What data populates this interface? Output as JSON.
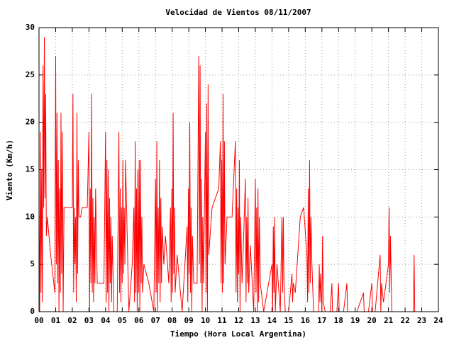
{
  "chart_data": {
    "type": "line",
    "title": "Velocidad de Vientos 08/11/2007",
    "x_label": "Tiempo (Hora Local Argentina)",
    "y_label": "Viento (Km/h)",
    "xlim": [
      0,
      24
    ],
    "ylim": [
      0,
      30
    ],
    "xticks": [
      {
        "value": 0,
        "label": "00"
      },
      {
        "value": 1,
        "label": "01"
      },
      {
        "value": 2,
        "label": "02"
      },
      {
        "value": 3,
        "label": "03"
      },
      {
        "value": 4,
        "label": "04"
      },
      {
        "value": 5,
        "label": "05"
      },
      {
        "value": 6,
        "label": "06"
      },
      {
        "value": 7,
        "label": "07"
      },
      {
        "value": 8,
        "label": "08"
      },
      {
        "value": 9,
        "label": "09"
      },
      10,
      11,
      12,
      13,
      14,
      15,
      16,
      17,
      18,
      19,
      20,
      21,
      22,
      23,
      24
    ],
    "yticks": [
      0,
      5,
      10,
      15,
      20,
      25,
      30
    ],
    "grid": true,
    "series": [
      {
        "color": "#ff0000",
        "x": [
          0,
          0.04,
          0.08,
          0.12,
          0.16,
          0.2,
          0.24,
          0.28,
          0.32,
          0.36,
          0.4,
          0.44,
          0.5,
          0.7,
          0.95,
          1.0,
          1.04,
          1.08,
          1.12,
          1.16,
          1.2,
          1.24,
          1.28,
          1.32,
          1.36,
          1.4,
          1.45,
          1.5,
          1.9,
          2.0,
          2.04,
          2.08,
          2.12,
          2.16,
          2.2,
          2.24,
          2.28,
          2.32,
          2.36,
          2.4,
          2.5,
          2.6,
          2.7,
          2.8,
          2.9,
          3.0,
          3.04,
          3.08,
          3.12,
          3.16,
          3.2,
          3.24,
          3.28,
          3.32,
          3.36,
          3.4,
          3.5,
          3.9,
          4.0,
          4.04,
          4.08,
          4.12,
          4.16,
          4.2,
          4.24,
          4.28,
          4.32,
          4.36,
          4.4,
          4.5,
          4.7,
          4.8,
          4.84,
          4.88,
          4.92,
          4.96,
          5.0,
          5.04,
          5.08,
          5.12,
          5.16,
          5.2,
          5.3,
          5.4,
          5.6,
          5.7,
          5.74,
          5.78,
          5.82,
          5.86,
          5.9,
          5.94,
          5.98,
          6.02,
          6.06,
          6.1,
          6.14,
          6.18,
          6.22,
          6.3,
          6.6,
          6.9,
          7.0,
          7.04,
          7.08,
          7.12,
          7.16,
          7.2,
          7.24,
          7.28,
          7.32,
          7.36,
          7.4,
          7.5,
          7.6,
          7.8,
          7.9,
          7.94,
          7.98,
          8.02,
          8.06,
          8.1,
          8.14,
          8.18,
          8.3,
          8.6,
          8.9,
          8.94,
          8.98,
          9.02,
          9.06,
          9.1,
          9.14,
          9.18,
          9.22,
          9.3,
          9.5,
          9.6,
          9.64,
          9.68,
          9.72,
          9.76,
          9.8,
          9.84,
          9.88,
          9.92,
          10.0,
          10.04,
          10.08,
          10.12,
          10.16,
          10.2,
          10.4,
          10.8,
          10.9,
          10.94,
          10.98,
          11.02,
          11.06,
          11.1,
          11.14,
          11.18,
          11.3,
          11.6,
          11.8,
          11.84,
          11.88,
          11.92,
          11.96,
          12.0,
          12.04,
          12.08,
          12.12,
          12.2,
          12.3,
          12.4,
          12.44,
          12.48,
          12.52,
          12.56,
          12.6,
          12.7,
          12.9,
          13.0,
          13.04,
          13.08,
          13.12,
          13.16,
          13.2,
          13.24,
          13.3,
          13.5,
          13.8,
          14.0,
          14.04,
          14.08,
          14.12,
          14.16,
          14.2,
          14.3,
          14.5,
          14.6,
          14.64,
          14.68,
          14.72,
          14.8,
          15.0,
          15.2,
          15.24,
          15.28,
          15.4,
          15.7,
          15.9,
          16.1,
          16.14,
          16.18,
          16.22,
          16.26,
          16.3,
          16.34,
          16.4,
          16.5,
          16.8,
          16.84,
          16.88,
          16.92,
          17.0,
          17.04,
          17.08,
          17.2,
          17.5,
          17.6,
          17.64,
          17.9,
          18.0,
          18.04,
          18.3,
          18.5,
          18.54,
          18.8,
          19.1,
          19.5,
          19.54,
          19.8,
          20.0,
          20.04,
          20.2,
          20.5,
          20.54,
          20.58,
          20.7,
          21.0,
          21.04,
          21.08,
          21.12,
          21.2,
          22.5,
          22.54,
          22.58
        ],
        "values": [
          10,
          0,
          19,
          2,
          15,
          1,
          26,
          11,
          29,
          12,
          23,
          8,
          10,
          6,
          2,
          27,
          5,
          21,
          3,
          16,
          0,
          13,
          2,
          21,
          4,
          19,
          0,
          11,
          11,
          11,
          23,
          2,
          11,
          5,
          10,
          1,
          21,
          4,
          16,
          10,
          10,
          11,
          11,
          11,
          11,
          19,
          0,
          13,
          3,
          23,
          2,
          12,
          1,
          10,
          3,
          13,
          3,
          3,
          19,
          1,
          16,
          2,
          15,
          0,
          12,
          3,
          10,
          1,
          8,
          0,
          0,
          19,
          2,
          13,
          1,
          11,
          3,
          16,
          4,
          11,
          5,
          16,
          8,
          0,
          5,
          11,
          1,
          18,
          2,
          13,
          0,
          15,
          2,
          16,
          0,
          16,
          3,
          10,
          2,
          5,
          3,
          0,
          14,
          2,
          18,
          0,
          11,
          3,
          16,
          1,
          12,
          3,
          9,
          5,
          8,
          3,
          11,
          1,
          13,
          2,
          21,
          4,
          11,
          2,
          6,
          0,
          9,
          1,
          13,
          4,
          20,
          2,
          11,
          0,
          8,
          3,
          3,
          27,
          5,
          26,
          3,
          14,
          0,
          10,
          3,
          8,
          19,
          2,
          22,
          0,
          24,
          6,
          11,
          13,
          18,
          3,
          16,
          2,
          23,
          3,
          18,
          5,
          10,
          10,
          18,
          2,
          13,
          1,
          11,
          4,
          16,
          0,
          10,
          3,
          8,
          14,
          1,
          10,
          3,
          12,
          2,
          7,
          0,
          14,
          2,
          11,
          0,
          13,
          1,
          10,
          3,
          0,
          3,
          5,
          0,
          9,
          2,
          10,
          0,
          5,
          0,
          10,
          2,
          10,
          3,
          0,
          0,
          4,
          1,
          3,
          2,
          10,
          11,
          6,
          1,
          13,
          2,
          16,
          3,
          10,
          5,
          0,
          0,
          5,
          1,
          4,
          0,
          8,
          1,
          0,
          0,
          3,
          0,
          0,
          3,
          0,
          0,
          3,
          0,
          0,
          0,
          2,
          0,
          0,
          3,
          0,
          0,
          6,
          0,
          3,
          1,
          5,
          11,
          2,
          8,
          0,
          0,
          6,
          0
        ]
      }
    ]
  }
}
